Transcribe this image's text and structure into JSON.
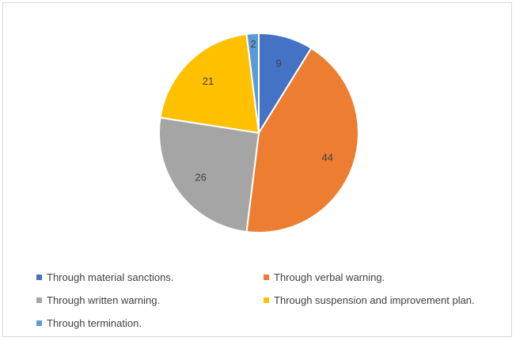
{
  "chart_data": {
    "type": "pie",
    "title": "",
    "start_angle_deg": 0,
    "slices": [
      {
        "label": "Through material sanctions.",
        "value": 9,
        "color": "#4472C4"
      },
      {
        "label": "Through verbal warning.",
        "value": 44,
        "color": "#ED7D31"
      },
      {
        "label": "Through written warning.",
        "value": 26,
        "color": "#A5A5A5"
      },
      {
        "label": "Through suspension and improvement plan.",
        "value": 21,
        "color": "#FFC000"
      },
      {
        "label": "Through termination.",
        "value": 2,
        "color": "#5B9BD5"
      }
    ],
    "data_labels": [
      "9",
      "44",
      "26",
      "21",
      "2"
    ],
    "legend_position": "bottom"
  }
}
